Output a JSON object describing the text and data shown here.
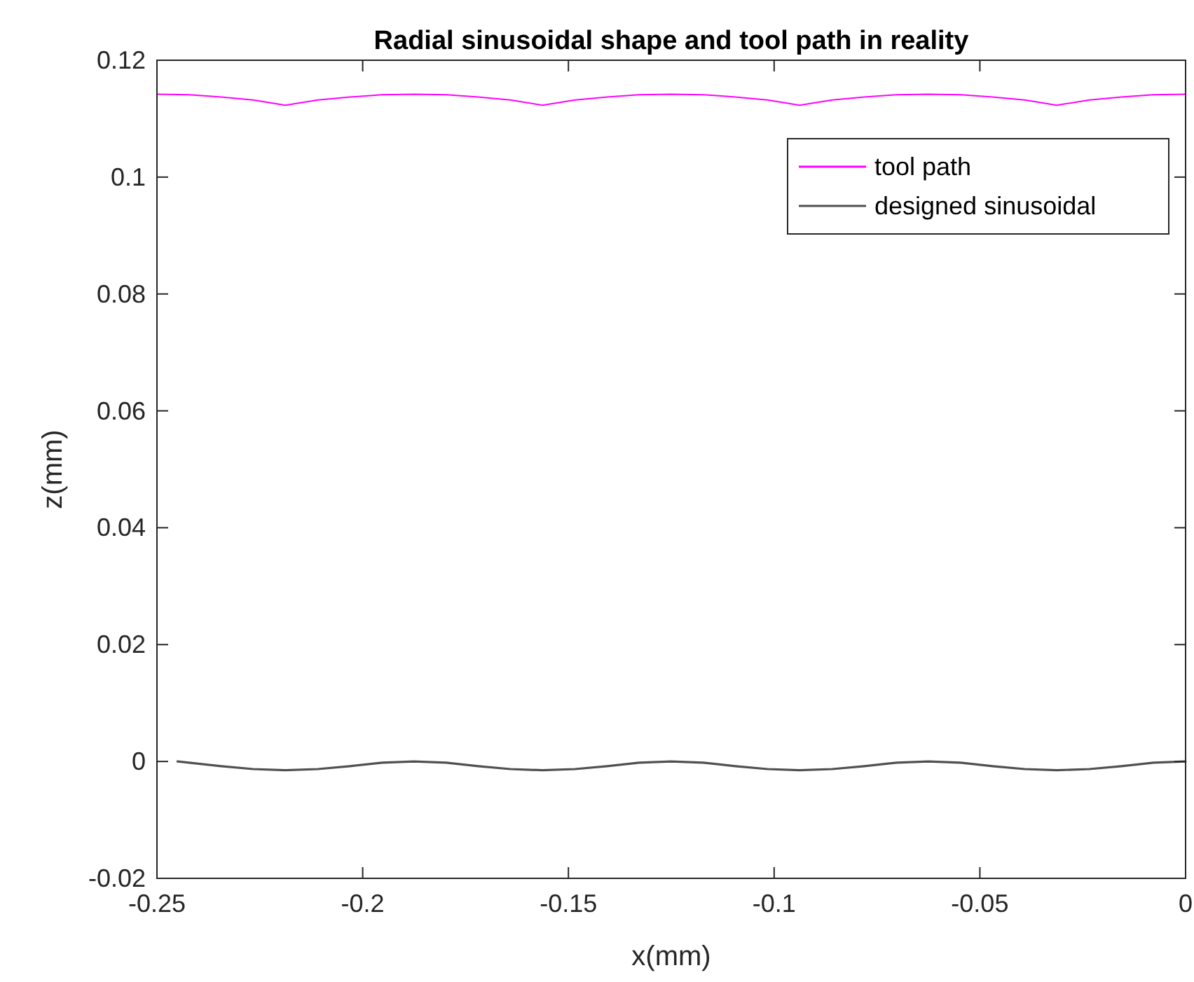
{
  "chart_data": {
    "type": "line",
    "title": "Radial sinusoidal shape and tool path in reality",
    "xlabel": "x(mm)",
    "ylabel": "z(mm)",
    "xlim": [
      -0.25,
      0
    ],
    "ylim": [
      -0.02,
      0.12
    ],
    "xticks": [
      -0.25,
      -0.2,
      -0.15,
      -0.1,
      -0.05,
      0
    ],
    "yticks": [
      -0.02,
      0,
      0.02,
      0.04,
      0.06,
      0.08,
      0.1,
      0.12
    ],
    "grid": false,
    "legend": "top right",
    "series": [
      {
        "name": "tool path",
        "color": "#ff00ff",
        "x": [
          -0.25,
          -0.2422,
          -0.2344,
          -0.2266,
          -0.2188,
          -0.2109,
          -0.2031,
          -0.1953,
          -0.1875,
          -0.1797,
          -0.1719,
          -0.1641,
          -0.1563,
          -0.1484,
          -0.1406,
          -0.1328,
          -0.125,
          -0.1172,
          -0.1094,
          -0.1016,
          -0.0938,
          -0.0859,
          -0.0781,
          -0.0703,
          -0.0625,
          -0.0547,
          -0.0469,
          -0.0391,
          -0.0313,
          -0.0234,
          -0.0156,
          -0.0078,
          0
        ],
        "values": [
          0.1142,
          0.1141,
          0.1137,
          0.1132,
          0.1123,
          0.1132,
          0.1137,
          0.1141,
          0.1142,
          0.1141,
          0.1137,
          0.1132,
          0.1123,
          0.1132,
          0.1137,
          0.1141,
          0.1142,
          0.1141,
          0.1137,
          0.1132,
          0.1123,
          0.1132,
          0.1137,
          0.1141,
          0.1142,
          0.1141,
          0.1137,
          0.1132,
          0.1123,
          0.1132,
          0.1137,
          0.1141,
          0.1142
        ]
      },
      {
        "name": "designed sinusoidal",
        "color": "#505050",
        "x": [
          -0.245,
          -0.2422,
          -0.2344,
          -0.2266,
          -0.2188,
          -0.2109,
          -0.2031,
          -0.1953,
          -0.1875,
          -0.1797,
          -0.1719,
          -0.1641,
          -0.1563,
          -0.1484,
          -0.1406,
          -0.1328,
          -0.125,
          -0.1172,
          -0.1094,
          -0.1016,
          -0.0938,
          -0.0859,
          -0.0781,
          -0.0703,
          -0.0625,
          -0.0547,
          -0.0469,
          -0.0391,
          -0.0313,
          -0.0234,
          -0.0156,
          -0.0078,
          0
        ],
        "values": [
          0,
          -0.0002,
          -0.0008,
          -0.0013,
          -0.0015,
          -0.0013,
          -0.0008,
          -0.0002,
          0,
          -0.0002,
          -0.0008,
          -0.0013,
          -0.0015,
          -0.0013,
          -0.0008,
          -0.0002,
          0,
          -0.0002,
          -0.0008,
          -0.0013,
          -0.0015,
          -0.0013,
          -0.0008,
          -0.0002,
          0,
          -0.0002,
          -0.0008,
          -0.0013,
          -0.0015,
          -0.0013,
          -0.0008,
          -0.0002,
          0
        ]
      }
    ]
  }
}
